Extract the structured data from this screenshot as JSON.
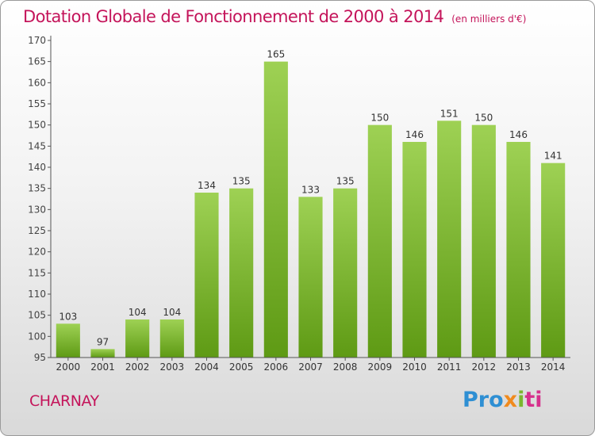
{
  "chart_data": {
    "type": "bar",
    "title": "Dotation Globale de Fonctionnement de 2000 à 2014",
    "unit_label": "(en milliers d'€)",
    "categories": [
      "2000",
      "2001",
      "2002",
      "2003",
      "2004",
      "2005",
      "2006",
      "2007",
      "2008",
      "2009",
      "2010",
      "2011",
      "2012",
      "2013",
      "2014"
    ],
    "values": [
      103,
      97,
      104,
      104,
      134,
      135,
      165,
      133,
      135,
      150,
      146,
      151,
      150,
      146,
      141
    ],
    "ylim": [
      95,
      170
    ],
    "yticks": [
      95,
      100,
      105,
      110,
      115,
      120,
      125,
      130,
      135,
      140,
      145,
      150,
      155,
      160,
      165,
      170
    ],
    "xlabel": "",
    "ylabel": "",
    "grid": false,
    "bar_color_top": "#9ed154",
    "bar_color_bottom": "#5e9a14"
  },
  "commune": "CHARNAY",
  "logo": {
    "p1": "Pro",
    "p2": "x",
    "p3": "i",
    "p4": "ti"
  },
  "colors": {
    "accent": "#c4145a"
  }
}
